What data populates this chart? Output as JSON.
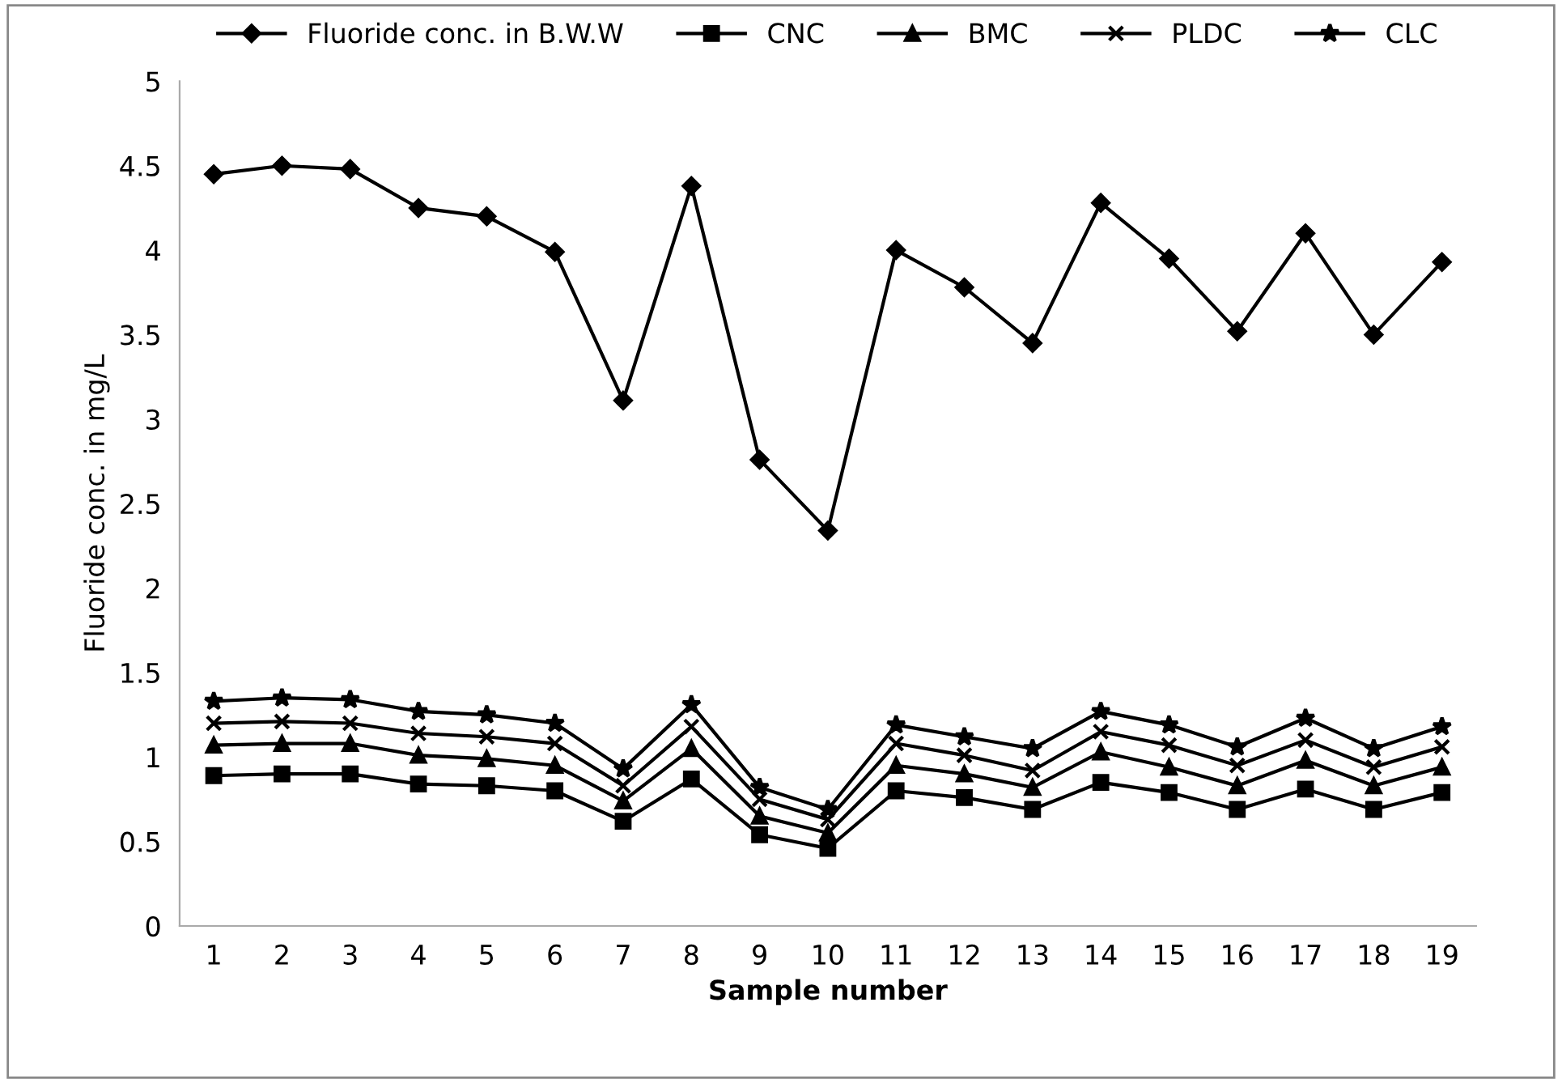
{
  "chart_data": {
    "type": "line",
    "xlabel": "Sample number",
    "ylabel": "Fluoride conc. in mg/L",
    "categories": [
      "1",
      "2",
      "3",
      "4",
      "5",
      "6",
      "7",
      "8",
      "9",
      "10",
      "11",
      "12",
      "13",
      "14",
      "15",
      "16",
      "17",
      "18",
      "19"
    ],
    "ylim": [
      0,
      5
    ],
    "yticks": [
      0,
      0.5,
      1,
      1.5,
      2,
      2.5,
      3,
      3.5,
      4,
      4.5,
      5
    ],
    "grid": false,
    "legend": "top",
    "line_style": "solid",
    "series": [
      {
        "name": "Fluoride conc. in B.W.W",
        "color": "#000000",
        "marker": "diamond",
        "values": [
          4.45,
          4.5,
          4.48,
          4.25,
          4.2,
          3.99,
          3.11,
          4.38,
          2.76,
          2.34,
          4.0,
          3.78,
          3.45,
          4.28,
          3.95,
          3.52,
          4.1,
          3.5,
          3.93
        ]
      },
      {
        "name": "CNC",
        "color": "#000000",
        "marker": "square",
        "values": [
          0.89,
          0.9,
          0.9,
          0.84,
          0.83,
          0.8,
          0.62,
          0.87,
          0.54,
          0.46,
          0.8,
          0.76,
          0.69,
          0.85,
          0.79,
          0.69,
          0.81,
          0.69,
          0.79
        ]
      },
      {
        "name": "BMC",
        "color": "#000000",
        "marker": "triangle",
        "values": [
          1.07,
          1.08,
          1.08,
          1.01,
          0.99,
          0.95,
          0.74,
          1.05,
          0.65,
          0.55,
          0.95,
          0.9,
          0.82,
          1.03,
          0.94,
          0.83,
          0.98,
          0.83,
          0.94
        ]
      },
      {
        "name": "PLDC",
        "color": "#000000",
        "marker": "cross",
        "values": [
          1.2,
          1.21,
          1.2,
          1.14,
          1.12,
          1.08,
          0.83,
          1.18,
          0.75,
          0.63,
          1.08,
          1.01,
          0.92,
          1.15,
          1.07,
          0.95,
          1.1,
          0.94,
          1.06
        ]
      },
      {
        "name": "CLC",
        "color": "#000000",
        "marker": "star",
        "values": [
          1.33,
          1.35,
          1.34,
          1.27,
          1.25,
          1.2,
          0.93,
          1.31,
          0.82,
          0.69,
          1.19,
          1.12,
          1.05,
          1.27,
          1.19,
          1.06,
          1.23,
          1.05,
          1.18
        ]
      }
    ]
  }
}
